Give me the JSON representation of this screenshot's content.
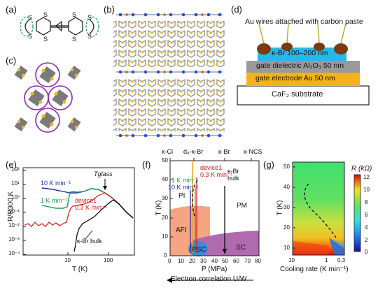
{
  "panels": {
    "a": "(a)",
    "b": "(b)",
    "c": "(c)",
    "d": "(d)",
    "e": "(e)",
    "f": "(f)",
    "g": "(g)"
  },
  "panel_a": {
    "atom": "S"
  },
  "panel_d": {
    "title": "Au wires attached with carbon paste",
    "layer1": "κ-Br 100–200 nm",
    "layer2": "gate dielectric Al₂O₃ 50 nm",
    "layer3": "gate electrode Au 50 nm",
    "layer4": "CaF₂ substrate"
  },
  "panel_e": {
    "ylabel": "R/R300 K",
    "xlabel": "T (K)",
    "yticks": [
      "10²",
      "10¹",
      "10⁰",
      "10⁻¹",
      "10⁻²",
      "10⁻³",
      "10⁻⁴"
    ],
    "xticks": [
      "10",
      "100"
    ],
    "label_10k": "10 K min⁻¹",
    "label_1k": "1 K min⁻¹",
    "label_device": "device1",
    "label_03k": "0.3 K min⁻¹",
    "label_bulk": "κ-Br bulk",
    "label_glass": "Tglass",
    "colors": {
      "blue": "#1a2aa8",
      "green": "#1a9a4a",
      "red": "#e01818",
      "black": "#000000"
    }
  },
  "panel_f": {
    "top_labels": [
      "κ-Cl",
      "d₈-κ-Br",
      "κ-Br",
      "κ-NCS"
    ],
    "ylabel": "T (K)",
    "xlabel": "P (MPa)",
    "yticks": [
      "0",
      "10",
      "20",
      "30",
      "40",
      "50"
    ],
    "xticks": [
      "0",
      "10",
      "20",
      "30",
      "40",
      "50",
      "60",
      "70",
      "80"
    ],
    "region_pi": "PI",
    "region_pm": "PM",
    "region_afi": "AFI",
    "region_psc": "PSC",
    "region_sc": "SC",
    "label_device": "device1",
    "label_03k": "0.3 K min⁻¹",
    "label_1k": "1 K min⁻¹",
    "label_10k": "10 K min⁻¹",
    "label_bulk_1": "κ-Br",
    "label_bulk_2": "bulk",
    "arrow_caption": "Electron correlation U/W"
  },
  "panel_g": {
    "ylabel": "T (K)",
    "xlabel": "Cooling rate (K min⁻¹)",
    "yticks": [
      "10",
      "20",
      "30",
      "40",
      "50"
    ],
    "xticks": [
      "10",
      "1",
      "0.3"
    ],
    "colorbar_title": "R (kΩ)",
    "colorbar_ticks": [
      "12",
      "10",
      "8",
      "6",
      "4",
      "2",
      "0"
    ]
  }
}
